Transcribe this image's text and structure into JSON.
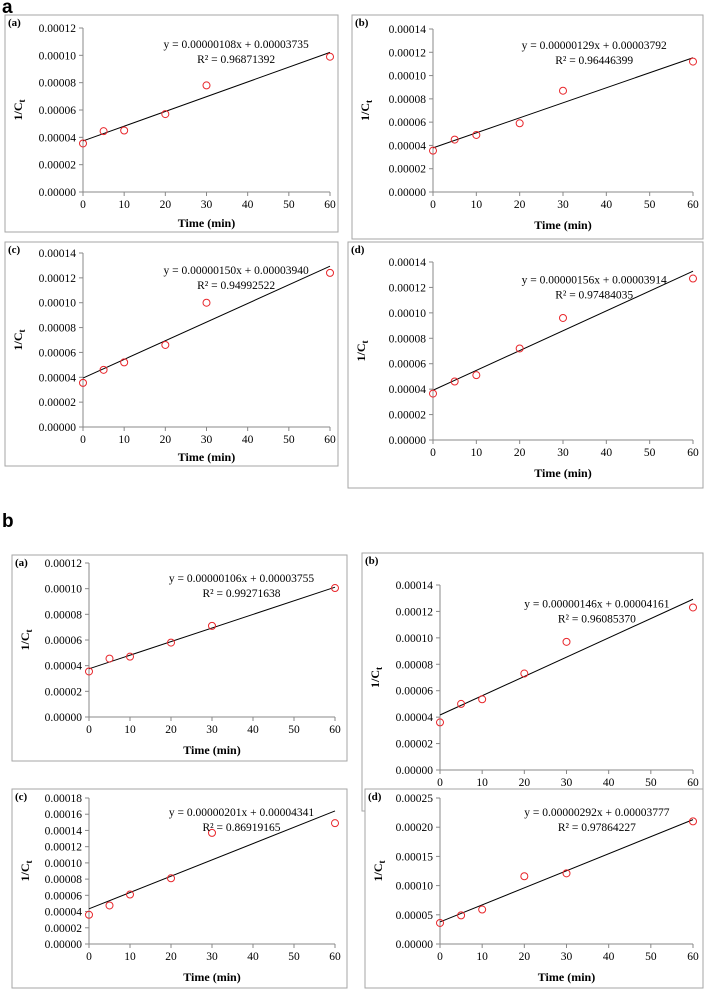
{
  "figure_labels": [
    "a",
    "b"
  ],
  "chart_data": [
    {
      "type": "scatter",
      "figure": "a",
      "panel_label": "(a)",
      "xlabel": "Time (min)",
      "ylabel": "1/C",
      "ylabel_sub": "t",
      "x": [
        0,
        5,
        10,
        20,
        30,
        60
      ],
      "y": [
        3.55e-05,
        4.45e-05,
        4.5e-05,
        5.7e-05,
        7.8e-05,
        9.9e-05
      ],
      "xlim": [
        0,
        60
      ],
      "xticks": [
        0,
        10,
        20,
        30,
        40,
        50,
        60
      ],
      "ylim": [
        0,
        0.00012
      ],
      "yticks": [
        0,
        2e-05,
        4e-05,
        6e-05,
        8e-05,
        0.0001,
        0.00012
      ],
      "trendline": {
        "slope": 1.08e-06,
        "intercept": 3.735e-05
      },
      "equation": "y = 0.00000108x + 0.00003735",
      "r2": "R² = 0.96871392"
    },
    {
      "type": "scatter",
      "figure": "a",
      "panel_label": "(b)",
      "xlabel": "Time (min)",
      "ylabel": "1/C",
      "ylabel_sub": "t",
      "x": [
        0,
        5,
        10,
        20,
        30,
        60
      ],
      "y": [
        3.55e-05,
        4.5e-05,
        4.9e-05,
        5.9e-05,
        8.7e-05,
        0.000112
      ],
      "xlim": [
        0,
        60
      ],
      "xticks": [
        0,
        10,
        20,
        30,
        40,
        50,
        60
      ],
      "ylim": [
        0,
        0.00014
      ],
      "yticks": [
        0,
        2e-05,
        4e-05,
        6e-05,
        8e-05,
        0.0001,
        0.00012,
        0.00014
      ],
      "trendline": {
        "slope": 1.29e-06,
        "intercept": 3.792e-05
      },
      "equation": "y = 0.00000129x + 0.00003792",
      "r2": "R² = 0.96446399"
    },
    {
      "type": "scatter",
      "figure": "a",
      "panel_label": "(c)",
      "xlabel": "Time (min)",
      "ylabel": "1/C",
      "ylabel_sub": "t",
      "x": [
        0,
        5,
        10,
        20,
        30,
        60
      ],
      "y": [
        3.55e-05,
        4.6e-05,
        5.2e-05,
        6.6e-05,
        0.0001,
        0.000124
      ],
      "xlim": [
        0,
        60
      ],
      "xticks": [
        0,
        10,
        20,
        30,
        40,
        50,
        60
      ],
      "ylim": [
        0,
        0.00014
      ],
      "yticks": [
        0,
        2e-05,
        4e-05,
        6e-05,
        8e-05,
        0.0001,
        0.00012,
        0.00014
      ],
      "trendline": {
        "slope": 1.5e-06,
        "intercept": 3.94e-05
      },
      "equation": "y = 0.00000150x + 0.00003940",
      "r2": "R² = 0.94992522"
    },
    {
      "type": "scatter",
      "figure": "a",
      "panel_label": "(d)",
      "xlabel": "Time (min)",
      "ylabel": "1/C",
      "ylabel_sub": "t",
      "x": [
        0,
        5,
        10,
        20,
        30,
        60
      ],
      "y": [
        3.65e-05,
        4.6e-05,
        5.1e-05,
        7.2e-05,
        9.6e-05,
        0.000127
      ],
      "xlim": [
        0,
        60
      ],
      "xticks": [
        0,
        10,
        20,
        30,
        40,
        50,
        60
      ],
      "ylim": [
        0,
        0.00014
      ],
      "yticks": [
        0,
        2e-05,
        4e-05,
        6e-05,
        8e-05,
        0.0001,
        0.00012,
        0.00014
      ],
      "trendline": {
        "slope": 1.56e-06,
        "intercept": 3.914e-05
      },
      "equation": "y = 0.00000156x + 0.00003914",
      "r2": "R² = 0.97484035"
    },
    {
      "type": "scatter",
      "figure": "b",
      "panel_label": "(a)",
      "xlabel": "Time (min)",
      "ylabel": "1/C",
      "ylabel_sub": "t",
      "x": [
        0,
        5,
        10,
        20,
        30,
        60
      ],
      "y": [
        3.55e-05,
        4.55e-05,
        4.7e-05,
        5.8e-05,
        7.1e-05,
        0.0001005
      ],
      "xlim": [
        0,
        60
      ],
      "xticks": [
        0,
        10,
        20,
        30,
        40,
        50,
        60
      ],
      "ylim": [
        0,
        0.00012
      ],
      "yticks": [
        0,
        2e-05,
        4e-05,
        6e-05,
        8e-05,
        0.0001,
        0.00012
      ],
      "trendline": {
        "slope": 1.06e-06,
        "intercept": 3.755e-05
      },
      "equation": "y = 0.00000106x + 0.00003755",
      "r2": "R² = 0.99271638"
    },
    {
      "type": "scatter",
      "figure": "b",
      "panel_label": "(b)",
      "xlabel": "Time (min)",
      "ylabel": "1/C",
      "ylabel_sub": "t",
      "x": [
        0,
        5,
        10,
        20,
        30,
        60
      ],
      "y": [
        3.6e-05,
        5e-05,
        5.35e-05,
        7.3e-05,
        9.7e-05,
        0.000123
      ],
      "xlim": [
        0,
        60
      ],
      "xticks": [
        0,
        10,
        20,
        30,
        40,
        50,
        60
      ],
      "ylim": [
        0,
        0.00014
      ],
      "yticks": [
        0,
        2e-05,
        4e-05,
        6e-05,
        8e-05,
        0.0001,
        0.00012,
        0.00014
      ],
      "trendline": {
        "slope": 1.46e-06,
        "intercept": 4.161e-05
      },
      "equation": "y = 0.00000146x + 0.00004161",
      "r2": "R² = 0.96085370"
    },
    {
      "type": "scatter",
      "figure": "b",
      "panel_label": "(c)",
      "xlabel": "Time (min)",
      "ylabel": "1/C",
      "ylabel_sub": "t",
      "x": [
        0,
        5,
        10,
        20,
        30,
        60
      ],
      "y": [
        3.6e-05,
        4.75e-05,
        6.1e-05,
        8.1e-05,
        0.000137,
        0.000149
      ],
      "xlim": [
        0,
        60
      ],
      "xticks": [
        0,
        10,
        20,
        30,
        40,
        50,
        60
      ],
      "ylim": [
        0,
        0.00018
      ],
      "yticks": [
        0,
        2e-05,
        4e-05,
        6e-05,
        8e-05,
        0.0001,
        0.00012,
        0.00014,
        0.00016,
        0.00018
      ],
      "trendline": {
        "slope": 2.01e-06,
        "intercept": 4.341e-05
      },
      "equation": "y = 0.00000201x + 0.00004341",
      "r2": "R² = 0.86919165"
    },
    {
      "type": "scatter",
      "figure": "b",
      "panel_label": "(d)",
      "xlabel": "Time (min)",
      "ylabel": "1/C",
      "ylabel_sub": "t",
      "x": [
        0,
        5,
        10,
        20,
        30,
        60
      ],
      "y": [
        3.6e-05,
        4.9e-05,
        5.9e-05,
        0.000116,
        0.000121,
        0.00021
      ],
      "xlim": [
        0,
        60
      ],
      "xticks": [
        0,
        10,
        20,
        30,
        40,
        50,
        60
      ],
      "ylim": [
        0,
        0.00025
      ],
      "yticks": [
        0,
        5e-05,
        0.0001,
        0.00015,
        0.0002,
        0.00025
      ],
      "trendline": {
        "slope": 2.92e-06,
        "intercept": 3.777e-05
      },
      "equation": "y = 0.00000292x + 0.00003777",
      "r2": "R² = 0.97864227"
    }
  ],
  "colors": {
    "marker": "#e8262b",
    "line": "#000000",
    "frame": "#a6a6a6"
  }
}
